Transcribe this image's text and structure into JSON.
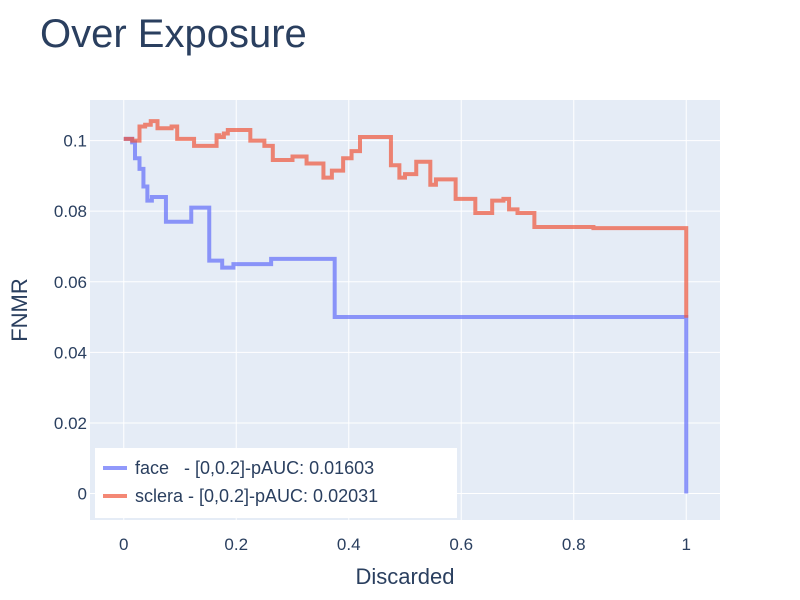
{
  "chart_data": {
    "type": "line",
    "line_shape": "step",
    "title": "Over Exposure",
    "xlabel": "Discarded",
    "ylabel": "FNMR",
    "xlim": [
      -0.06,
      1.06
    ],
    "ylim": [
      -0.0075,
      0.1115
    ],
    "x_ticks": [
      0,
      0.2,
      0.4,
      0.6,
      0.8,
      1
    ],
    "x_tick_labels": [
      "0",
      "0.2",
      "0.4",
      "0.6",
      "0.8",
      "1"
    ],
    "y_ticks": [
      0,
      0.02,
      0.04,
      0.06,
      0.08,
      0.1
    ],
    "y_tick_labels": [
      "0",
      "0.02",
      "0.04",
      "0.06",
      "0.08",
      "0.1"
    ],
    "grid": true,
    "legend_position": "bottom-left",
    "series": [
      {
        "name": "face   - [0,0.2]-pAUC: 0.01603",
        "color": "#636efa",
        "x": [
          0,
          0.015,
          0.02,
          0.028,
          0.035,
          0.042,
          0.05,
          0.075,
          0.12,
          0.152,
          0.175,
          0.195,
          0.262,
          0.375,
          1.0,
          1.0
        ],
        "y": [
          0.1005,
          0.0995,
          0.095,
          0.092,
          0.087,
          0.083,
          0.084,
          0.077,
          0.081,
          0.066,
          0.064,
          0.065,
          0.0665,
          0.05,
          0.05,
          0.0
        ]
      },
      {
        "name": "sclera - [0,0.2]-pAUC: 0.02031",
        "color": "#ef553b",
        "x": [
          0,
          0.015,
          0.028,
          0.038,
          0.048,
          0.06,
          0.085,
          0.095,
          0.125,
          0.165,
          0.17,
          0.178,
          0.185,
          0.225,
          0.25,
          0.265,
          0.3,
          0.325,
          0.355,
          0.37,
          0.39,
          0.405,
          0.42,
          0.435,
          0.475,
          0.49,
          0.5,
          0.52,
          0.545,
          0.555,
          0.59,
          0.625,
          0.655,
          0.675,
          0.685,
          0.7,
          0.73,
          0.835,
          1.0,
          1.0
        ],
        "y": [
          0.1005,
          0.1,
          0.104,
          0.1045,
          0.1055,
          0.1035,
          0.104,
          0.1005,
          0.0985,
          0.1015,
          0.101,
          0.102,
          0.103,
          0.1,
          0.0985,
          0.0945,
          0.0955,
          0.0935,
          0.0895,
          0.0915,
          0.095,
          0.097,
          0.101,
          0.101,
          0.093,
          0.0895,
          0.0905,
          0.094,
          0.0875,
          0.089,
          0.0835,
          0.0795,
          0.083,
          0.0835,
          0.0805,
          0.0795,
          0.0755,
          0.0752,
          0.0752,
          0.0498
        ]
      }
    ]
  }
}
